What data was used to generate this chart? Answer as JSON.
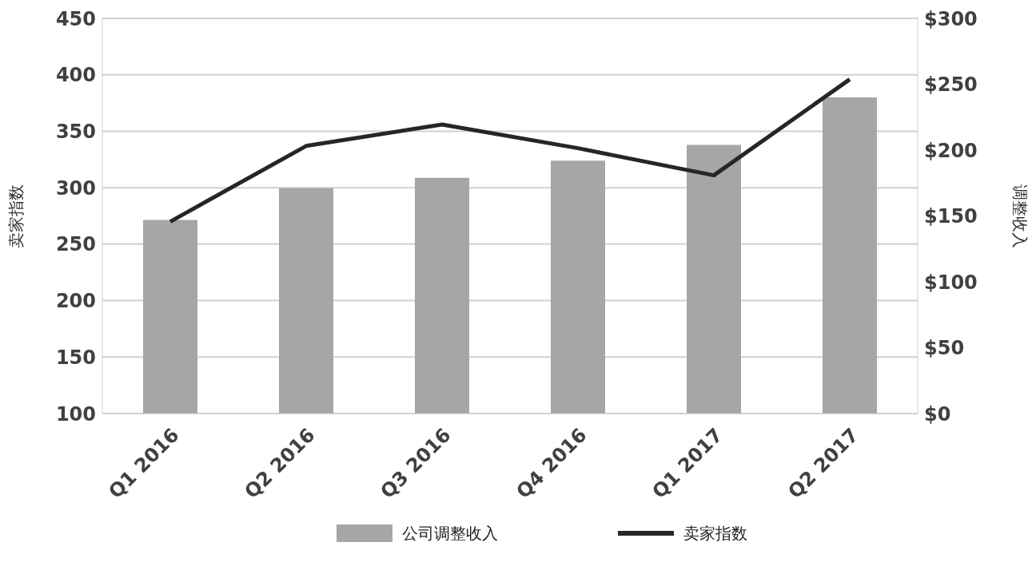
{
  "chart_data": {
    "type": "bar",
    "categories": [
      "Q1 2016",
      "Q2 2016",
      "Q3 2016",
      "Q4 2016",
      "Q1 2017",
      "Q2 2017"
    ],
    "series": [
      {
        "name": "公司调整收入",
        "axis": "y2",
        "color": "#a6a6a6",
        "values": [
          147,
          171,
          179,
          192,
          204,
          240
        ]
      },
      {
        "name": "卖家指数",
        "type": "line",
        "axis": "y",
        "color": "#262626",
        "values": [
          270,
          337,
          356,
          335,
          311,
          396
        ]
      }
    ],
    "ylabel": "卖家指数",
    "y2label": "调整收入",
    "ylim": [
      100,
      450
    ],
    "yticks": [
      100,
      150,
      200,
      250,
      300,
      350,
      400,
      450
    ],
    "y2lim": [
      0,
      300
    ],
    "y2ticks": [
      {
        "value": 0,
        "label": "$0"
      },
      {
        "value": 50,
        "label": "$50"
      },
      {
        "value": 100,
        "label": "$100"
      },
      {
        "value": 150,
        "label": "$150"
      },
      {
        "value": 200,
        "label": "$200"
      },
      {
        "value": 250,
        "label": "$250"
      },
      {
        "value": 300,
        "label": "$300"
      }
    ],
    "grid": "y",
    "legend": "bottom",
    "marker": "none",
    "line_style": "solid"
  }
}
